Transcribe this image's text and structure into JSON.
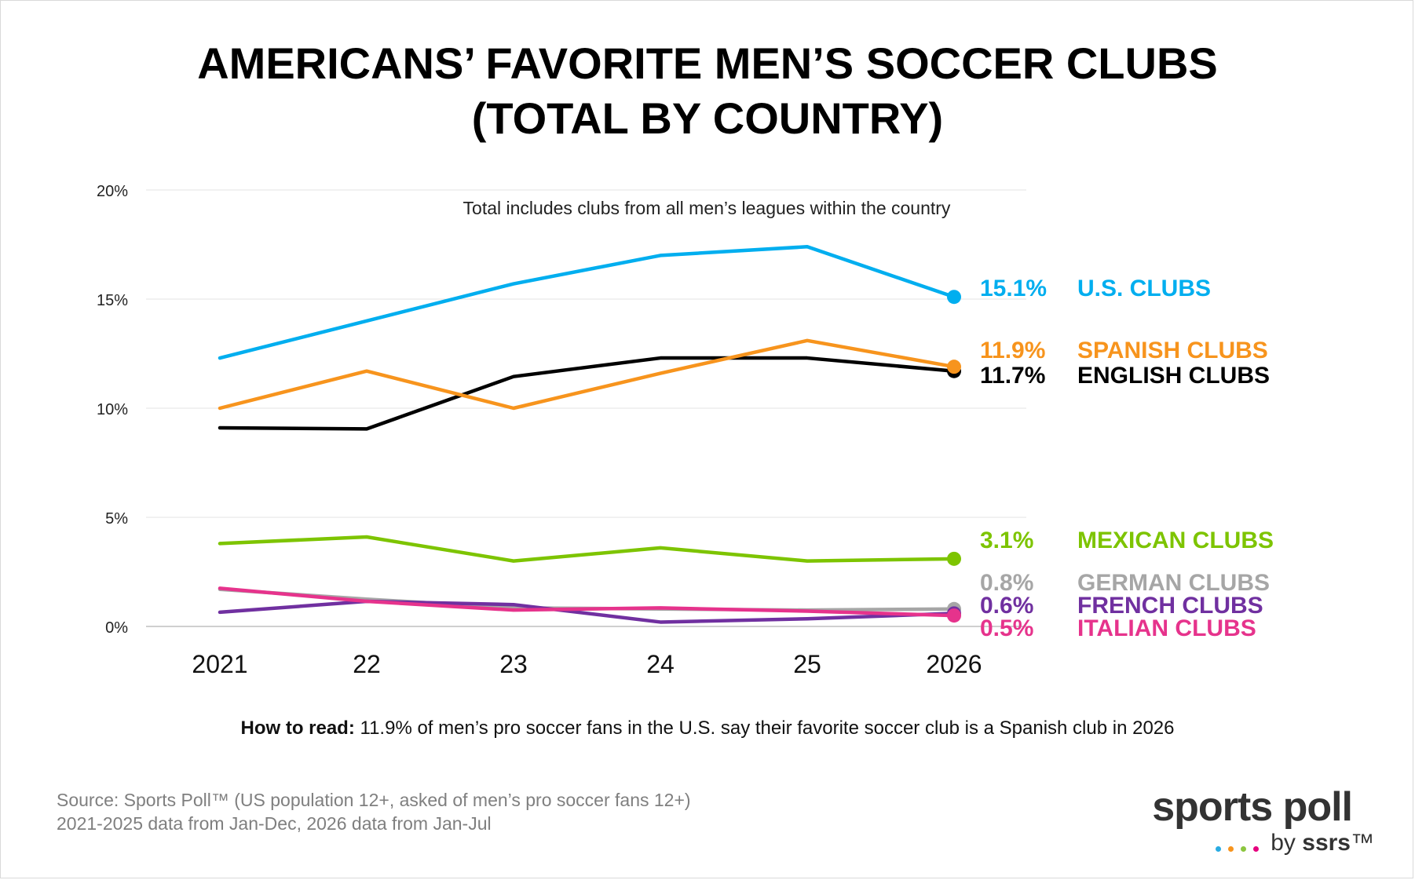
{
  "title_line1": "AMERICANS’ FAVORITE MEN’S SOCCER CLUBS",
  "title_line2": "(TOTAL BY COUNTRY)",
  "how_to_read": {
    "label": "How to read:",
    "text": " 11.9% of men’s pro soccer fans in the U.S. say their favorite soccer club is a Spanish club in 2026"
  },
  "source": {
    "line1": "Source: Sports Poll™ (US population 12+, asked of men’s pro soccer fans 12+)",
    "line2": "2021-2025 data from Jan-Dec, 2026 data from Jan-Jul"
  },
  "logo": {
    "main": "sports poll",
    "by": "by ",
    "brand": "ssrs",
    "tm": "™",
    "dot_colors": [
      "#29abe2",
      "#f7941d",
      "#8cc63f",
      "#e6007e"
    ]
  },
  "chart_data": {
    "type": "line",
    "annotation": "Total includes clubs from all men’s leagues within the country",
    "categories": [
      "2021",
      "22",
      "23",
      "24",
      "25",
      "2026"
    ],
    "yticks": [
      {
        "value": 0,
        "label": "0%"
      },
      {
        "value": 5,
        "label": "5%"
      },
      {
        "value": 10,
        "label": "10%"
      },
      {
        "value": 15,
        "label": "15%"
      },
      {
        "value": 20,
        "label": "20%"
      }
    ],
    "ylim": [
      0,
      20
    ],
    "grid": true,
    "series": [
      {
        "name": "U.S. CLUBS",
        "color": "#00aeef",
        "values": [
          12.3,
          14.0,
          15.7,
          17.0,
          17.4,
          15.1
        ],
        "end_label": "15.1%"
      },
      {
        "name": "SPANISH CLUBS",
        "color": "#f7941d",
        "values": [
          10.0,
          11.7,
          10.0,
          11.6,
          13.1,
          11.9
        ],
        "end_label": "11.9%"
      },
      {
        "name": "ENGLISH CLUBS",
        "color": "#000000",
        "values": [
          9.1,
          9.05,
          11.45,
          12.3,
          12.3,
          11.7
        ],
        "end_label": "11.7%"
      },
      {
        "name": "MEXICAN CLUBS",
        "color": "#7dc400",
        "values": [
          3.8,
          4.1,
          3.0,
          3.6,
          3.0,
          3.1
        ],
        "end_label": "3.1%"
      },
      {
        "name": "GERMAN CLUBS",
        "color": "#a6a6a6",
        "values": [
          1.7,
          1.25,
          0.85,
          0.8,
          0.75,
          0.8
        ],
        "end_label": "0.8%"
      },
      {
        "name": "FRENCH CLUBS",
        "color": "#7030a0",
        "values": [
          0.65,
          1.15,
          1.0,
          0.2,
          0.35,
          0.6
        ],
        "end_label": "0.6%"
      },
      {
        "name": "ITALIAN CLUBS",
        "color": "#e6338c",
        "values": [
          1.75,
          1.15,
          0.75,
          0.85,
          0.7,
          0.5
        ],
        "end_label": "0.5%"
      }
    ]
  }
}
